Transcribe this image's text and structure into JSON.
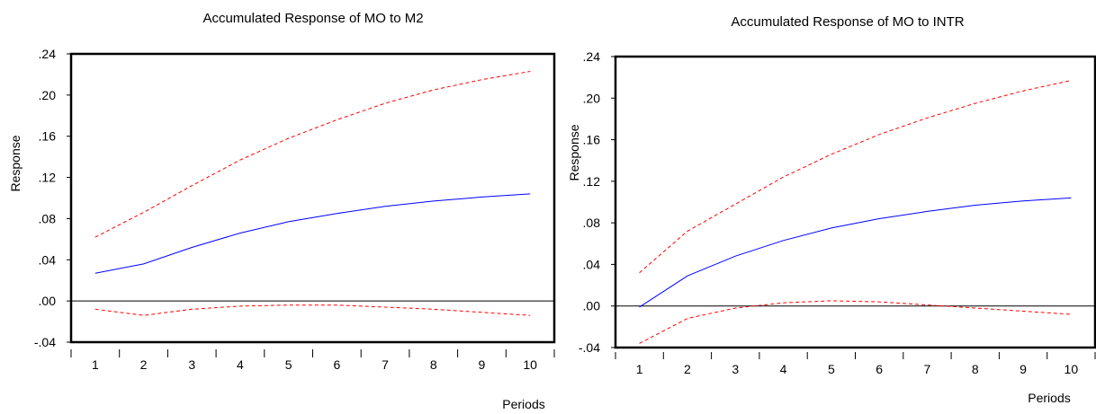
{
  "chart_data": [
    {
      "type": "line",
      "title": "Accumulated Response of MO to M2",
      "xlabel": "Periods",
      "ylabel": "Response",
      "x": [
        1,
        2,
        3,
        4,
        5,
        6,
        7,
        8,
        9,
        10
      ],
      "ylim": [
        -0.04,
        0.24
      ],
      "yticks": [
        ".24",
        ".20",
        ".16",
        ".12",
        ".08",
        ".04",
        ".00",
        "-.04"
      ],
      "xticks": [
        "1",
        "2",
        "3",
        "4",
        "5",
        "6",
        "7",
        "8",
        "9",
        "10"
      ],
      "zero_line": true,
      "series": [
        {
          "role": "response",
          "style": "solid",
          "color": "#0000ff",
          "values": [
            0.027,
            0.036,
            0.052,
            0.066,
            0.077,
            0.085,
            0.092,
            0.097,
            0.101,
            0.104
          ]
        },
        {
          "role": "upper",
          "style": "dashed",
          "color": "#ff0000",
          "values": [
            0.062,
            0.086,
            0.112,
            0.137,
            0.158,
            0.176,
            0.192,
            0.205,
            0.215,
            0.223
          ]
        },
        {
          "role": "lower",
          "style": "dashed",
          "color": "#ff0000",
          "values": [
            -0.008,
            -0.014,
            -0.008,
            -0.005,
            -0.004,
            -0.004,
            -0.006,
            -0.008,
            -0.011,
            -0.014
          ]
        }
      ]
    },
    {
      "type": "line",
      "title": "Accumulated Response of MO to INTR",
      "xlabel": "Periods",
      "ylabel": "Response",
      "x": [
        1,
        2,
        3,
        4,
        5,
        6,
        7,
        8,
        9,
        10
      ],
      "ylim": [
        -0.04,
        0.24
      ],
      "yticks": [
        ".24",
        ".20",
        ".16",
        ".12",
        ".08",
        ".04",
        ".00",
        "-.04"
      ],
      "xticks": [
        "1",
        "2",
        "3",
        "4",
        "5",
        "6",
        "7",
        "8",
        "9",
        "10"
      ],
      "zero_line": true,
      "series": [
        {
          "role": "response",
          "style": "solid",
          "color": "#0000ff",
          "values": [
            -0.001,
            0.029,
            0.048,
            0.063,
            0.075,
            0.084,
            0.091,
            0.097,
            0.101,
            0.104
          ]
        },
        {
          "role": "upper",
          "style": "dashed",
          "color": "#ff0000",
          "values": [
            0.032,
            0.072,
            0.098,
            0.124,
            0.146,
            0.165,
            0.181,
            0.195,
            0.207,
            0.217
          ]
        },
        {
          "role": "lower",
          "style": "dashed",
          "color": "#ff0000",
          "values": [
            -0.036,
            -0.012,
            -0.002,
            0.003,
            0.005,
            0.004,
            0.001,
            -0.002,
            -0.005,
            -0.008
          ]
        }
      ]
    }
  ]
}
